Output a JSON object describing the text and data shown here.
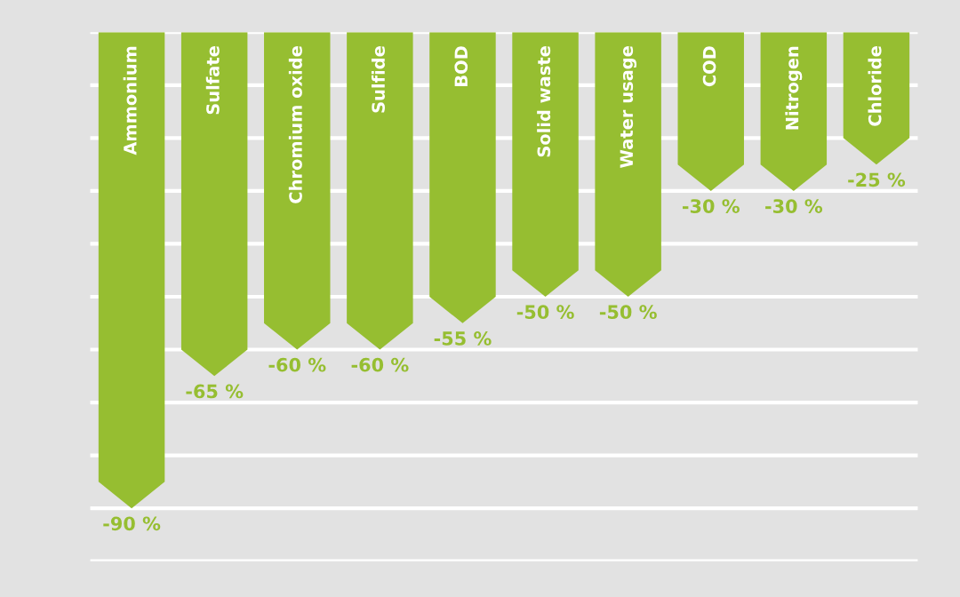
{
  "chart_data": {
    "type": "bar",
    "categories": [
      "Ammonium",
      "Sulfate",
      "Chromium oxide",
      "Sulfide",
      "BOD",
      "Solid waste",
      "Water usage",
      "COD",
      "Nitrogen",
      "Chloride"
    ],
    "values": [
      -90,
      -65,
      -60,
      -60,
      -55,
      -50,
      -50,
      -30,
      -30,
      -25
    ],
    "value_labels": [
      "-90 %",
      "-65 %",
      "-60 %",
      "-60 %",
      "-55 %",
      "-50 %",
      "-50 %",
      "-30 %",
      "-30 %",
      "-25 %"
    ],
    "color": "#96be31",
    "ylim": [
      -100,
      0
    ],
    "yticks": [
      {
        "value": 0,
        "label": null
      },
      {
        "value": -10,
        "label": null
      },
      {
        "value": -20,
        "label": null
      },
      {
        "value": -30,
        "label": null
      },
      {
        "value": -40,
        "label": null
      },
      {
        "value": -50,
        "label": null
      },
      {
        "value": -60,
        "label": null
      },
      {
        "value": -70,
        "label": null
      },
      {
        "value": -80,
        "label": null
      },
      {
        "value": -90,
        "label": null
      },
      {
        "value": -100,
        "label": null
      }
    ],
    "grid": "y"
  }
}
